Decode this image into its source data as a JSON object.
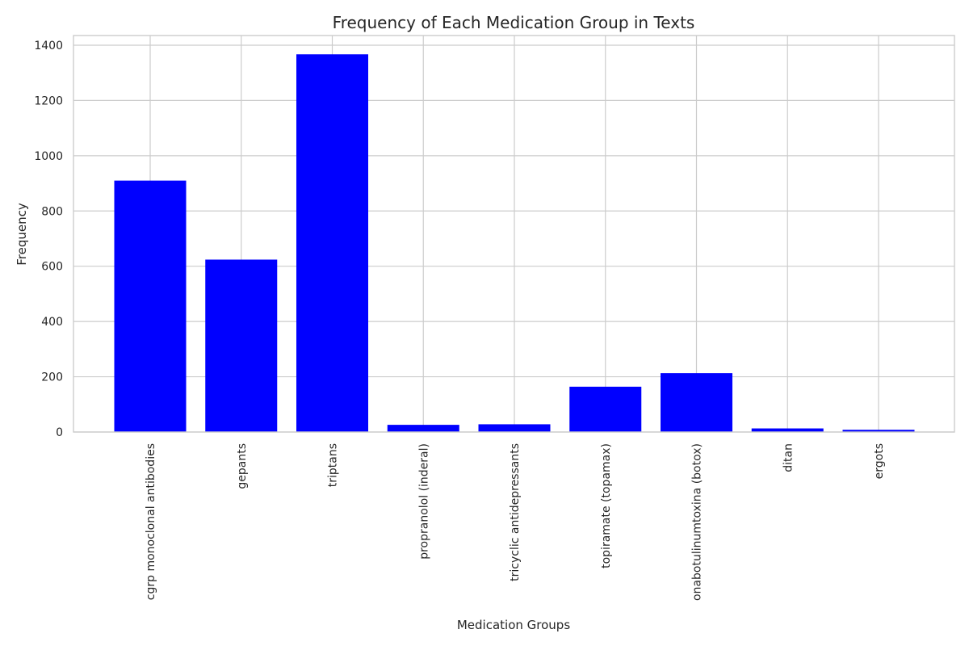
{
  "chart_data": {
    "type": "bar",
    "title": "Frequency of Each Medication Group in Texts",
    "xlabel": "Medication Groups",
    "ylabel": "Frequency",
    "categories": [
      "cgrp monoclonal antibodies",
      "gepants",
      "triptans",
      "propranolol (inderal)",
      "tricyclic antidepressants",
      "topiramate (topamax)",
      "onabotulinumtoxina (botox)",
      "ditan",
      "ergots"
    ],
    "values": [
      910,
      624,
      1367,
      26,
      28,
      164,
      213,
      13,
      8
    ],
    "ylim": [
      0,
      1435
    ],
    "yticks": [
      0,
      200,
      400,
      600,
      800,
      1000,
      1200,
      1400
    ],
    "grid": true,
    "bar_color": "#0000ff",
    "grid_color": "#cccccc"
  }
}
